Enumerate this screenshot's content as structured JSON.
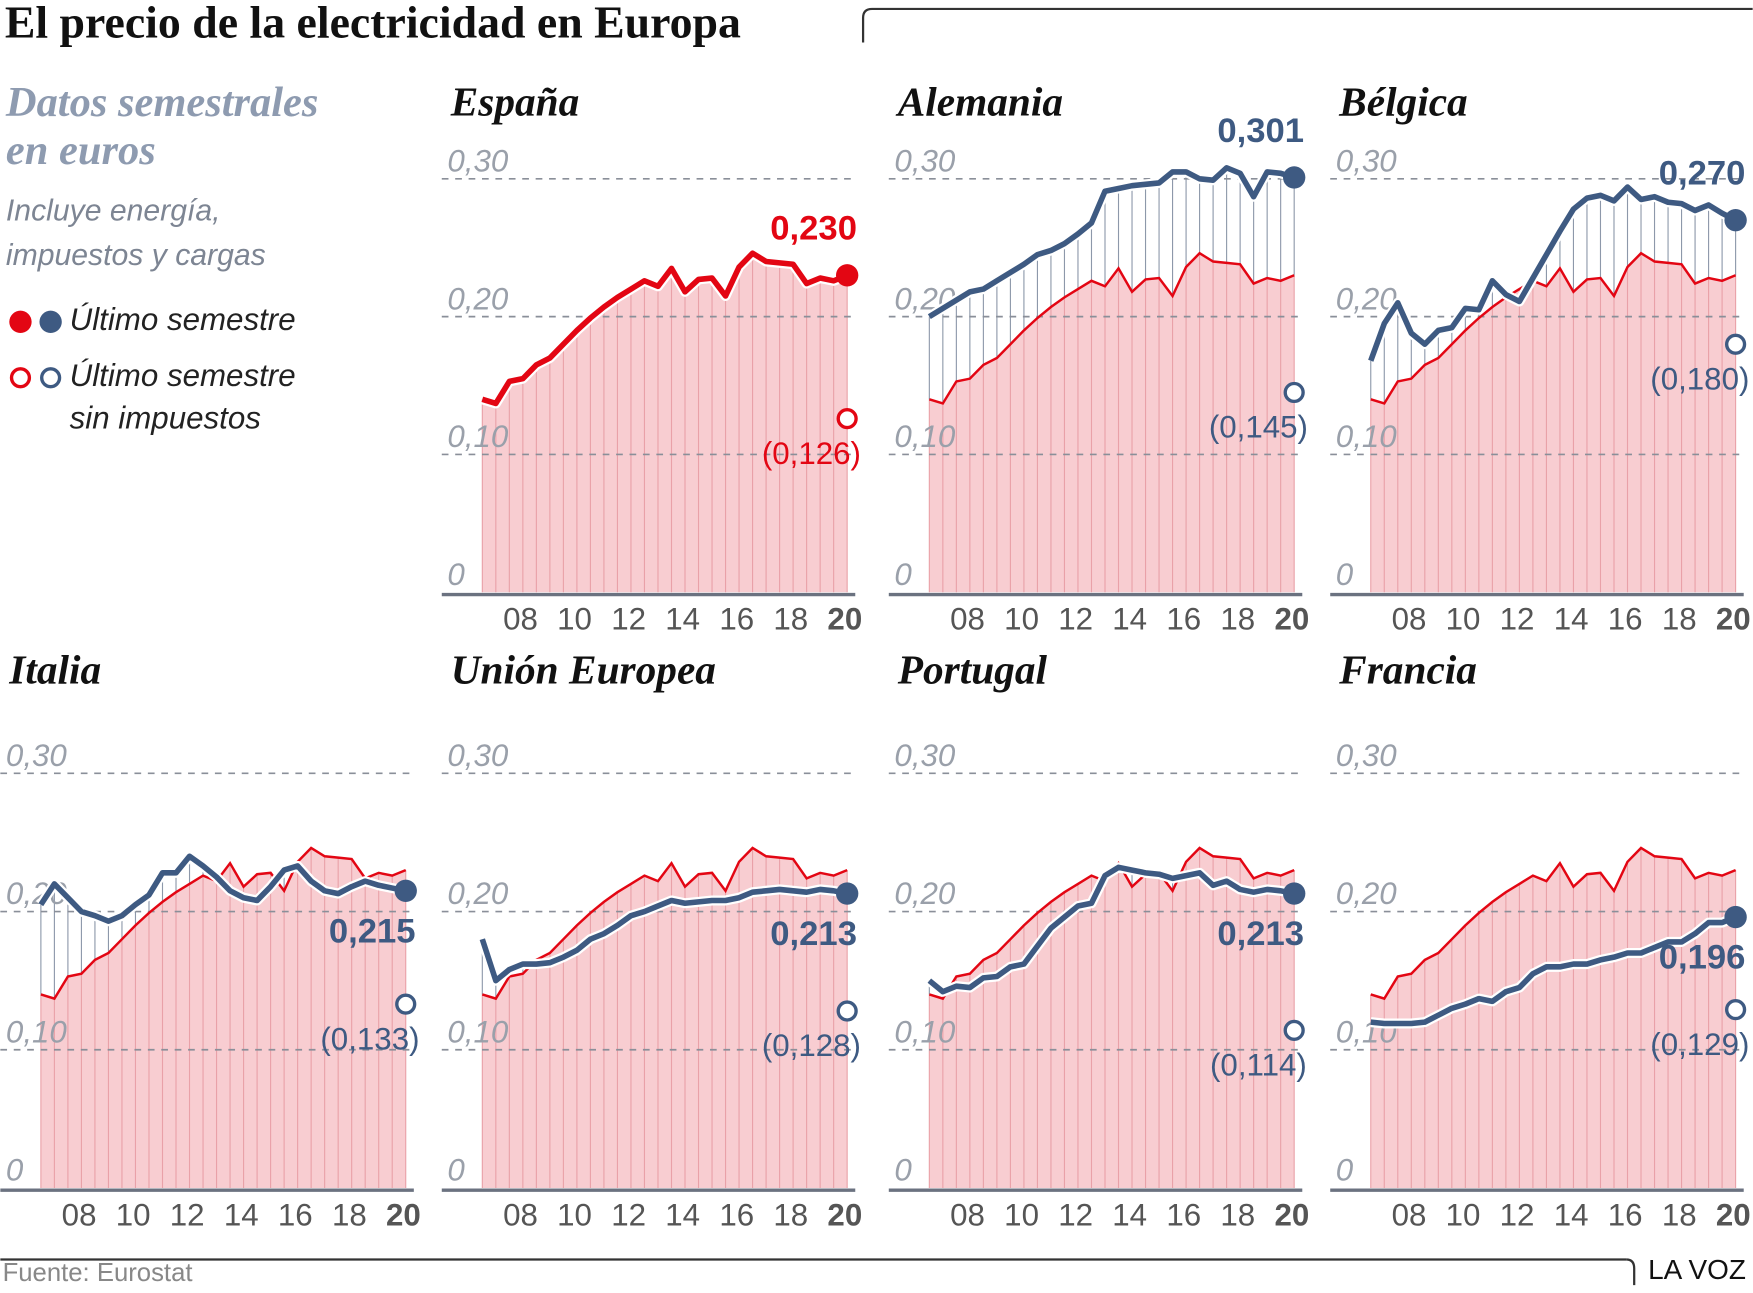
{
  "chart_data": {
    "type": "line",
    "title": "El precio de la electricidad en Europa",
    "subtitle": [
      "Datos semestrales",
      "en euros"
    ],
    "note": [
      "Incluye energía,",
      "impuestos y cargas"
    ],
    "legend": [
      {
        "label": [
          "Último semestre"
        ],
        "colors": [
          "#e30613",
          "#3e5a82"
        ],
        "filled": true
      },
      {
        "label": [
          "Último semestre",
          "sin impuestos"
        ],
        "colors": [
          "#e30613",
          "#3e5a82"
        ],
        "filled": false
      }
    ],
    "source": "Fuente: Eurostat",
    "brand": "LA VOZ",
    "area_color": "#f8cdd1",
    "x": [
      2007,
      2007.5,
      2008,
      2008.5,
      2009,
      2009.5,
      2010,
      2010.5,
      2011,
      2011.5,
      2012,
      2012.5,
      2013,
      2013.5,
      2014,
      2014.5,
      2015,
      2015.5,
      2016,
      2016.5,
      2017,
      2017.5,
      2018,
      2018.5,
      2019,
      2019.5,
      2020,
      2020.5
    ],
    "xlim": [
      2005.5,
      2020.8
    ],
    "xticks": [
      {
        "value": 2008,
        "label": "08"
      },
      {
        "value": 2010,
        "label": "10"
      },
      {
        "value": 2012,
        "label": "12"
      },
      {
        "value": 2014,
        "label": "14"
      },
      {
        "value": 2016,
        "label": "16"
      },
      {
        "value": 2018,
        "label": "18"
      },
      {
        "value": 2020,
        "label": "20"
      }
    ],
    "ylim": [
      0,
      0.3
    ],
    "yticks": [
      0,
      {
        "value": 0.1,
        "label": "0,10"
      },
      {
        "value": 0.2,
        "label": "0,20"
      },
      {
        "value": 0.3,
        "label": "0,30"
      }
    ],
    "grid": true,
    "panels": [
      {
        "title": "España",
        "color": "#e30613",
        "values": [
          0.14,
          0.137,
          0.153,
          0.155,
          0.165,
          0.17,
          0.18,
          0.19,
          0.199,
          0.207,
          0.214,
          0.22,
          0.226,
          0.222,
          0.235,
          0.218,
          0.227,
          0.228,
          0.215,
          0.236,
          0.246,
          0.24,
          0.239,
          0.238,
          0.224,
          0.228,
          0.226,
          0.23
        ],
        "value_labels": [
          null,
          null,
          null,
          null,
          null,
          null,
          null,
          null,
          null,
          null,
          null,
          null,
          null,
          null,
          null,
          null,
          null,
          null,
          null,
          null,
          null,
          null,
          null,
          null,
          null,
          null,
          null,
          "0,230"
        ],
        "no_tax": {
          "value": 0.126,
          "label": "(0,126)"
        }
      },
      {
        "title": "Alemania",
        "color": "#3e5a82",
        "values": [
          0.2,
          0.206,
          0.212,
          0.218,
          0.22,
          0.226,
          0.232,
          0.238,
          0.245,
          0.248,
          0.253,
          0.26,
          0.268,
          0.291,
          0.293,
          0.295,
          0.296,
          0.297,
          0.305,
          0.305,
          0.3,
          0.299,
          0.308,
          0.304,
          0.287,
          0.305,
          0.304,
          0.301
        ],
        "value_labels": [
          null,
          null,
          null,
          null,
          null,
          null,
          null,
          null,
          null,
          null,
          null,
          null,
          null,
          null,
          null,
          null,
          null,
          null,
          null,
          null,
          null,
          null,
          null,
          null,
          null,
          null,
          null,
          "0,301"
        ],
        "no_tax": {
          "value": 0.145,
          "label": "(0,145)"
        }
      },
      {
        "title": "Bélgica",
        "color": "#3e5a82",
        "values": [
          0.168,
          0.195,
          0.21,
          0.188,
          0.18,
          0.19,
          0.192,
          0.206,
          0.205,
          0.226,
          0.216,
          0.211,
          0.228,
          0.245,
          0.262,
          0.278,
          0.286,
          0.288,
          0.284,
          0.294,
          0.285,
          0.287,
          0.283,
          0.282,
          0.277,
          0.281,
          0.275,
          0.27
        ],
        "value_labels": [
          null,
          null,
          null,
          null,
          null,
          null,
          null,
          null,
          null,
          null,
          null,
          null,
          null,
          null,
          null,
          null,
          null,
          null,
          null,
          null,
          null,
          null,
          null,
          null,
          null,
          null,
          null,
          "0,270"
        ],
        "no_tax": {
          "value": 0.18,
          "label": "(0,180)"
        }
      },
      {
        "title": "Italia",
        "color": "#3e5a82",
        "values": [
          0.205,
          0.22,
          0.21,
          0.2,
          0.197,
          0.193,
          0.197,
          0.205,
          0.212,
          0.228,
          0.228,
          0.24,
          0.233,
          0.225,
          0.215,
          0.21,
          0.208,
          0.218,
          0.23,
          0.233,
          0.222,
          0.215,
          0.213,
          0.218,
          0.222,
          0.219,
          0.217,
          0.215
        ],
        "value_labels": [
          null,
          null,
          null,
          null,
          null,
          null,
          null,
          null,
          null,
          null,
          null,
          null,
          null,
          null,
          null,
          null,
          null,
          null,
          null,
          null,
          null,
          null,
          null,
          null,
          null,
          null,
          null,
          "0,215"
        ],
        "no_tax": {
          "value": 0.133,
          "label": "(0,133)"
        }
      },
      {
        "title": "Unión Europea",
        "color": "#3e5a82",
        "values": [
          0.18,
          0.15,
          0.158,
          0.162,
          0.162,
          0.163,
          0.167,
          0.172,
          0.18,
          0.184,
          0.19,
          0.197,
          0.2,
          0.204,
          0.208,
          0.206,
          0.207,
          0.208,
          0.208,
          0.21,
          0.214,
          0.215,
          0.216,
          0.215,
          0.214,
          0.216,
          0.215,
          0.213
        ],
        "value_labels": [
          null,
          null,
          null,
          null,
          null,
          null,
          null,
          null,
          null,
          null,
          null,
          null,
          null,
          null,
          null,
          null,
          null,
          null,
          null,
          null,
          null,
          null,
          null,
          null,
          null,
          null,
          null,
          "0,213"
        ],
        "no_tax": {
          "value": 0.128,
          "label": "(0,128)"
        }
      },
      {
        "title": "Portugal",
        "color": "#3e5a82",
        "values": [
          0.15,
          0.142,
          0.146,
          0.145,
          0.152,
          0.153,
          0.16,
          0.162,
          0.175,
          0.188,
          0.196,
          0.204,
          0.206,
          0.226,
          0.232,
          0.23,
          0.228,
          0.227,
          0.224,
          0.226,
          0.228,
          0.219,
          0.222,
          0.216,
          0.214,
          0.216,
          0.215,
          0.213
        ],
        "value_labels": [
          null,
          null,
          null,
          null,
          null,
          null,
          null,
          null,
          null,
          null,
          null,
          null,
          null,
          null,
          null,
          null,
          null,
          null,
          null,
          null,
          null,
          null,
          null,
          null,
          null,
          null,
          null,
          "0,213"
        ],
        "no_tax": {
          "value": 0.114,
          "label": "(0,114)"
        }
      },
      {
        "title": "Francia",
        "color": "#3e5a82",
        "values": [
          0.12,
          0.119,
          0.119,
          0.119,
          0.12,
          0.125,
          0.13,
          0.133,
          0.137,
          0.135,
          0.142,
          0.145,
          0.155,
          0.16,
          0.16,
          0.162,
          0.162,
          0.165,
          0.167,
          0.17,
          0.17,
          0.174,
          0.178,
          0.178,
          0.184,
          0.192,
          0.192,
          0.196
        ],
        "value_labels": [
          null,
          null,
          null,
          null,
          null,
          null,
          null,
          null,
          null,
          null,
          null,
          null,
          null,
          null,
          null,
          null,
          null,
          null,
          null,
          null,
          null,
          null,
          null,
          null,
          null,
          null,
          null,
          "0,196"
        ],
        "no_tax": {
          "value": 0.129,
          "label": "(0,129)"
        }
      }
    ]
  }
}
